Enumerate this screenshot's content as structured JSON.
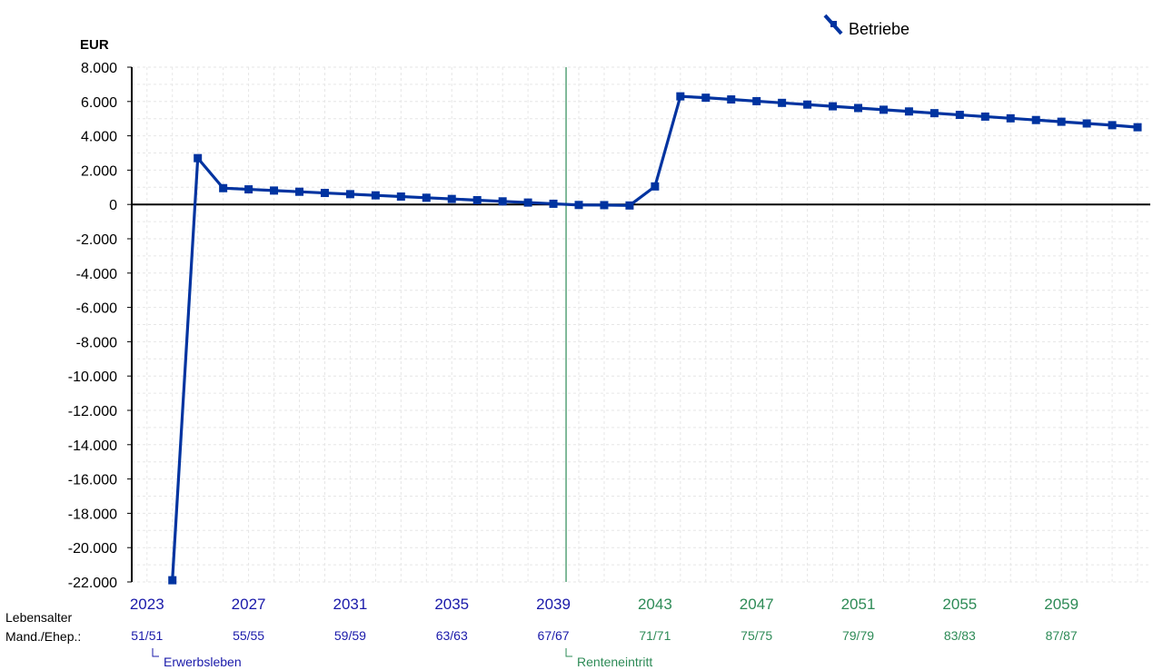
{
  "chart_data": {
    "type": "line",
    "ylabel": "EUR",
    "ylim": [
      -22000,
      8000
    ],
    "y_ticks": [
      8000,
      6000,
      4000,
      2000,
      0,
      -2000,
      -4000,
      -6000,
      -8000,
      -10000,
      -12000,
      -14000,
      -16000,
      -18000,
      -20000,
      -22000
    ],
    "y_tick_labels": [
      "8.000",
      "6.000",
      "4.000",
      "2.000",
      "0",
      "-2.000",
      "-4.000",
      "-6.000",
      "-8.000",
      "-10.000",
      "-12.000",
      "-14.000",
      "-16.000",
      "-18.000",
      "-20.000",
      "-22.000"
    ],
    "xlim": [
      2022.4,
      2062.5
    ],
    "x_ticks": [
      2023,
      2027,
      2031,
      2035,
      2039,
      2043,
      2047,
      2051,
      2055,
      2059
    ],
    "x_tick_labels": [
      "2023",
      "2027",
      "2031",
      "2035",
      "2039",
      "2043",
      "2047",
      "2051",
      "2055",
      "2059"
    ],
    "age_label_line1": "Lebensalter",
    "age_label_line2": "Mand./Ehep.:",
    "age_labels": [
      "51/51",
      "55/55",
      "59/59",
      "63/63",
      "67/67",
      "71/71",
      "75/75",
      "79/79",
      "83/83",
      "87/87"
    ],
    "legend_position": "top-right",
    "grid": true,
    "series": [
      {
        "name": "Betriebe",
        "color": "#0033a0",
        "x": [
          2024,
          2025,
          2026,
          2027,
          2028,
          2029,
          2030,
          2031,
          2032,
          2033,
          2034,
          2035,
          2036,
          2037,
          2038,
          2039,
          2040,
          2041,
          2042,
          2043,
          2044,
          2045,
          2046,
          2047,
          2048,
          2049,
          2050,
          2051,
          2052,
          2053,
          2054,
          2055,
          2056,
          2057,
          2058,
          2059,
          2060,
          2061,
          2062
        ],
        "y": [
          -21900,
          2700,
          950,
          880,
          810,
          740,
          670,
          600,
          530,
          460,
          390,
          320,
          250,
          180,
          110,
          40,
          -30,
          -40,
          -60,
          1050,
          6300,
          6220,
          6120,
          6020,
          5920,
          5820,
          5720,
          5620,
          5520,
          5420,
          5320,
          5220,
          5120,
          5020,
          4920,
          4820,
          4720,
          4620,
          4500
        ]
      }
    ],
    "annotations": [
      {
        "x": 2024,
        "label": "Erwerbsleben",
        "color": "#1a1aaa"
      },
      {
        "x": 2039.5,
        "label": "Renteneintritt",
        "color": "#2e8b57",
        "vertical_line": true
      }
    ],
    "colors": {
      "working_years": "#1a1aaa",
      "retirement_years": "#2e8b57",
      "axis": "#000000",
      "grid": "#e6e6e6"
    }
  }
}
